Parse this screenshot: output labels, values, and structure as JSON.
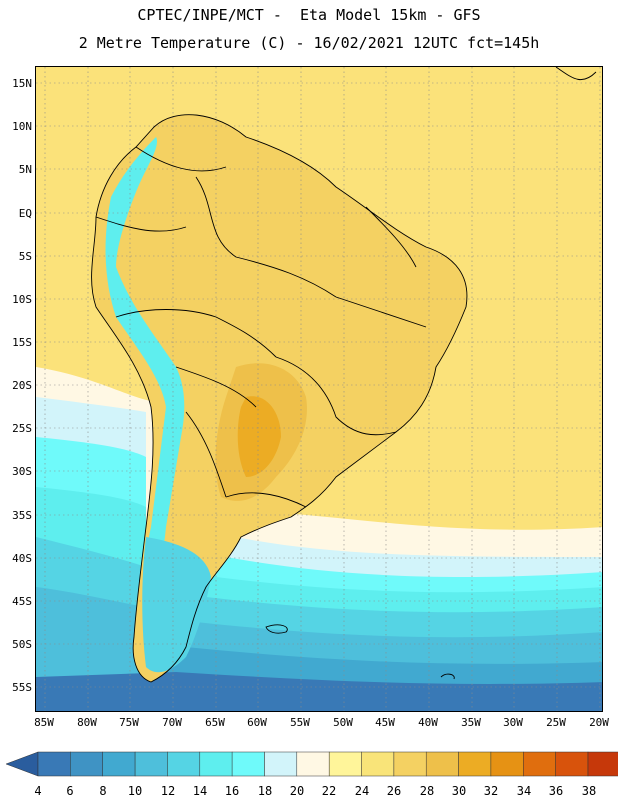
{
  "title": {
    "line1": "CPTEC/INPE/MCT -  Eta Model 15km - GFS",
    "line2": "2 Metre Temperature (C) - 16/02/2021 12UTC fct=145h"
  },
  "axes": {
    "lat_labels": [
      "15N",
      "10N",
      "5N",
      "EQ",
      "5S",
      "10S",
      "15S",
      "20S",
      "25S",
      "30S",
      "35S",
      "40S",
      "45S",
      "50S",
      "55S"
    ],
    "lon_labels": [
      "85W",
      "80W",
      "75W",
      "70W",
      "65W",
      "60W",
      "55W",
      "50W",
      "45W",
      "40W",
      "35W",
      "30W",
      "25W",
      "20W"
    ]
  },
  "colorbar": {
    "ticks": [
      "4",
      "6",
      "8",
      "10",
      "12",
      "14",
      "16",
      "18",
      "20",
      "22",
      "24",
      "26",
      "28",
      "30",
      "32",
      "34",
      "36",
      "38"
    ],
    "colors": [
      "#2a5d9e",
      "#3979b6",
      "#3f93c4",
      "#41a9d0",
      "#4ebfdb",
      "#55d4e4",
      "#5eeeee",
      "#6ffafa",
      "#d2f4fa",
      "#fff8e4",
      "#fff59a",
      "#f9e479",
      "#f4d162",
      "#eec04a",
      "#ecac24",
      "#e69214",
      "#e06e0e",
      "#d8530c",
      "#c6380a",
      "#b33010"
    ]
  }
}
